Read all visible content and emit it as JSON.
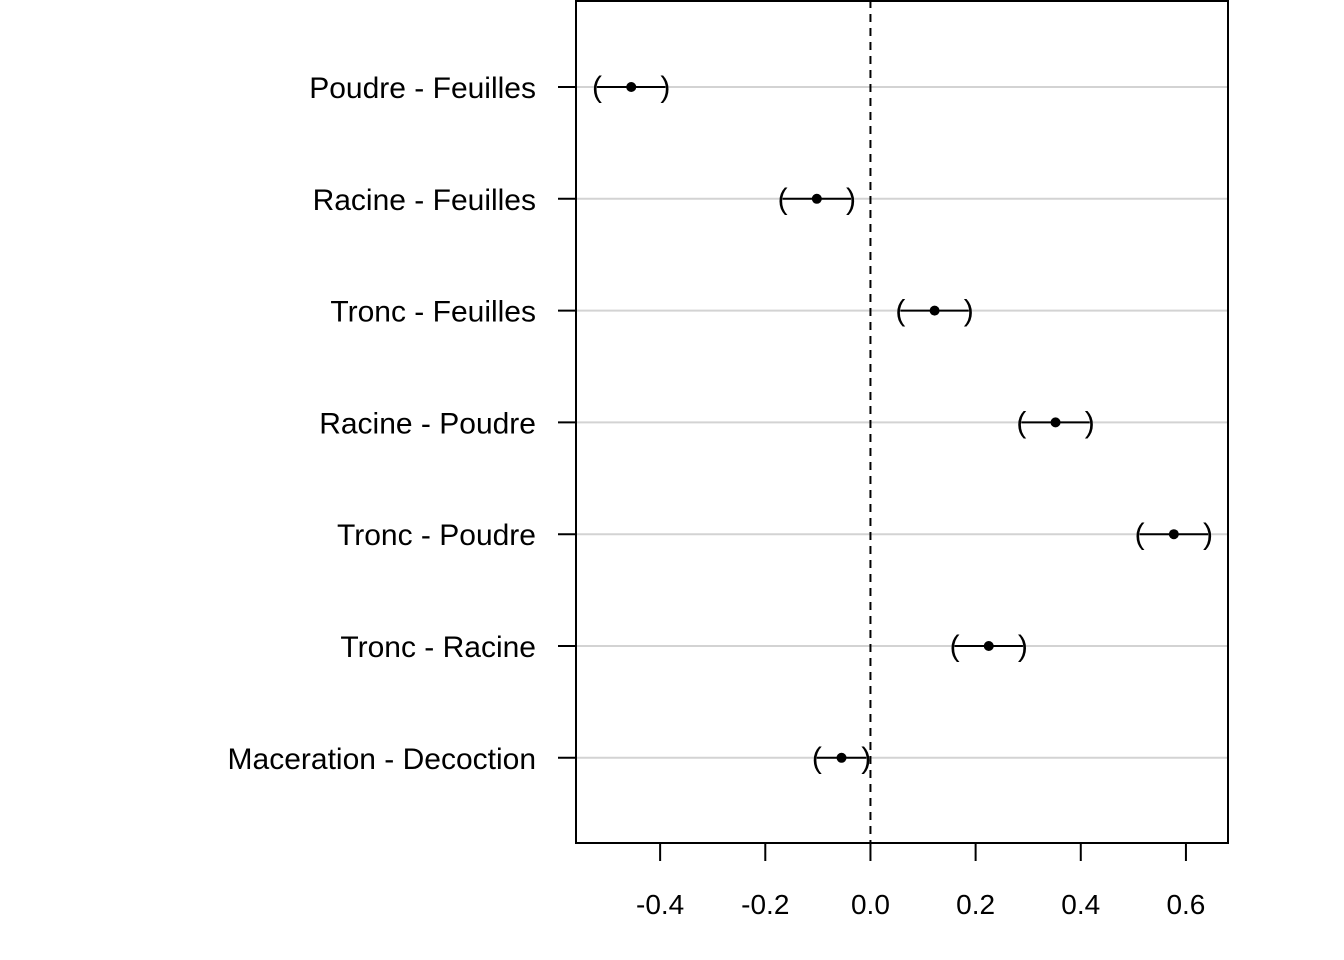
{
  "chart_data": {
    "type": "forest",
    "title": "",
    "xlabel": "",
    "ylabel": "",
    "xlim": [
      -0.56,
      0.68
    ],
    "xticks": [
      -0.4,
      -0.2,
      0.0,
      0.2,
      0.4,
      0.6
    ],
    "xtick_labels": [
      "-0.4",
      "-0.2",
      "0.0",
      "0.2",
      "0.4",
      "0.6"
    ],
    "reference_line": {
      "x": 0.0,
      "style": "dashed"
    },
    "grid": "horizontal",
    "rows": [
      {
        "label": "Poudre - Feuilles",
        "estimate": -0.455,
        "lower": -0.52,
        "upper": -0.39
      },
      {
        "label": "Racine - Feuilles",
        "estimate": -0.102,
        "lower": -0.167,
        "upper": -0.037
      },
      {
        "label": "Tronc - Feuilles",
        "estimate": 0.122,
        "lower": 0.057,
        "upper": 0.187
      },
      {
        "label": "Racine - Poudre",
        "estimate": 0.352,
        "lower": 0.287,
        "upper": 0.417
      },
      {
        "label": "Tronc - Poudre",
        "estimate": 0.577,
        "lower": 0.512,
        "upper": 0.642
      },
      {
        "label": "Tronc - Racine",
        "estimate": 0.225,
        "lower": 0.16,
        "upper": 0.29
      },
      {
        "label": "Maceration - Decoction",
        "estimate": -0.055,
        "lower": -0.102,
        "upper": -0.008
      }
    ],
    "colors": {
      "points": "#000000",
      "grid": "#d3d3d3",
      "axis": "#000000"
    }
  }
}
